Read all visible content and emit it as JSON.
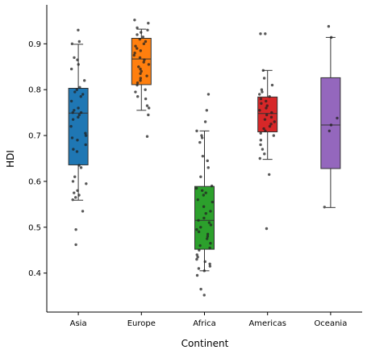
{
  "chart_data": {
    "type": "box",
    "xlabel": "Continent",
    "ylabel": "HDI",
    "ylim": [
      0.315,
      0.985
    ],
    "yticks": [
      0.4,
      0.5,
      0.6,
      0.7,
      0.8,
      0.9
    ],
    "ytick_labels": [
      "0.4",
      "0.5",
      "0.6",
      "0.7",
      "0.8",
      "0.9"
    ],
    "grid": false,
    "categories": [
      "Asia",
      "Europe",
      "Africa",
      "Americas",
      "Oceania"
    ],
    "boxes": [
      {
        "name": "Asia",
        "color": "#1f77b4",
        "q1": 0.636,
        "median": 0.749,
        "q3": 0.803,
        "whisker_low": 0.559,
        "whisker_high": 0.899
      },
      {
        "name": "Europe",
        "color": "#ff7f0e",
        "q1": 0.811,
        "median": 0.867,
        "q3": 0.912,
        "whisker_low": 0.755,
        "whisker_high": 0.932
      },
      {
        "name": "Africa",
        "color": "#2ca02c",
        "q1": 0.452,
        "median": 0.515,
        "q3": 0.589,
        "whisker_low": 0.405,
        "whisker_high": 0.71
      },
      {
        "name": "Americas",
        "color": "#d62728",
        "q1": 0.708,
        "median": 0.748,
        "q3": 0.784,
        "whisker_low": 0.648,
        "whisker_high": 0.842
      },
      {
        "name": "Oceania",
        "color": "#9467bd",
        "q1": 0.628,
        "median": 0.723,
        "q3": 0.826,
        "whisker_low": 0.543,
        "whisker_high": 0.914
      }
    ],
    "points": [
      [
        0.93,
        0.905,
        0.9,
        0.87,
        0.865,
        0.855,
        0.845,
        0.82,
        0.805,
        0.8,
        0.795,
        0.79,
        0.785,
        0.775,
        0.76,
        0.755,
        0.75,
        0.75,
        0.745,
        0.74,
        0.735,
        0.72,
        0.705,
        0.7,
        0.695,
        0.69,
        0.68,
        0.67,
        0.665,
        0.635,
        0.63,
        0.61,
        0.6,
        0.595,
        0.58,
        0.575,
        0.57,
        0.565,
        0.56,
        0.535,
        0.495,
        0.462
      ],
      [
        0.952,
        0.945,
        0.935,
        0.93,
        0.925,
        0.92,
        0.915,
        0.91,
        0.905,
        0.9,
        0.895,
        0.89,
        0.885,
        0.88,
        0.875,
        0.87,
        0.865,
        0.86,
        0.855,
        0.85,
        0.845,
        0.84,
        0.835,
        0.83,
        0.825,
        0.82,
        0.815,
        0.81,
        0.8,
        0.795,
        0.785,
        0.78,
        0.765,
        0.76,
        0.745,
        0.698
      ],
      [
        0.79,
        0.755,
        0.73,
        0.71,
        0.7,
        0.695,
        0.685,
        0.655,
        0.645,
        0.63,
        0.61,
        0.59,
        0.585,
        0.58,
        0.575,
        0.57,
        0.56,
        0.555,
        0.545,
        0.535,
        0.53,
        0.52,
        0.515,
        0.51,
        0.505,
        0.5,
        0.495,
        0.49,
        0.485,
        0.48,
        0.475,
        0.465,
        0.46,
        0.455,
        0.45,
        0.44,
        0.435,
        0.43,
        0.425,
        0.42,
        0.415,
        0.41,
        0.405,
        0.395,
        0.365,
        0.352
      ],
      [
        0.922,
        0.922,
        0.842,
        0.825,
        0.81,
        0.8,
        0.795,
        0.79,
        0.785,
        0.78,
        0.775,
        0.77,
        0.765,
        0.76,
        0.755,
        0.75,
        0.745,
        0.74,
        0.735,
        0.73,
        0.725,
        0.72,
        0.715,
        0.71,
        0.705,
        0.7,
        0.69,
        0.68,
        0.67,
        0.66,
        0.65,
        0.615,
        0.497
      ],
      [
        0.938,
        0.914,
        0.738,
        0.723,
        0.71,
        0.544
      ]
    ]
  }
}
